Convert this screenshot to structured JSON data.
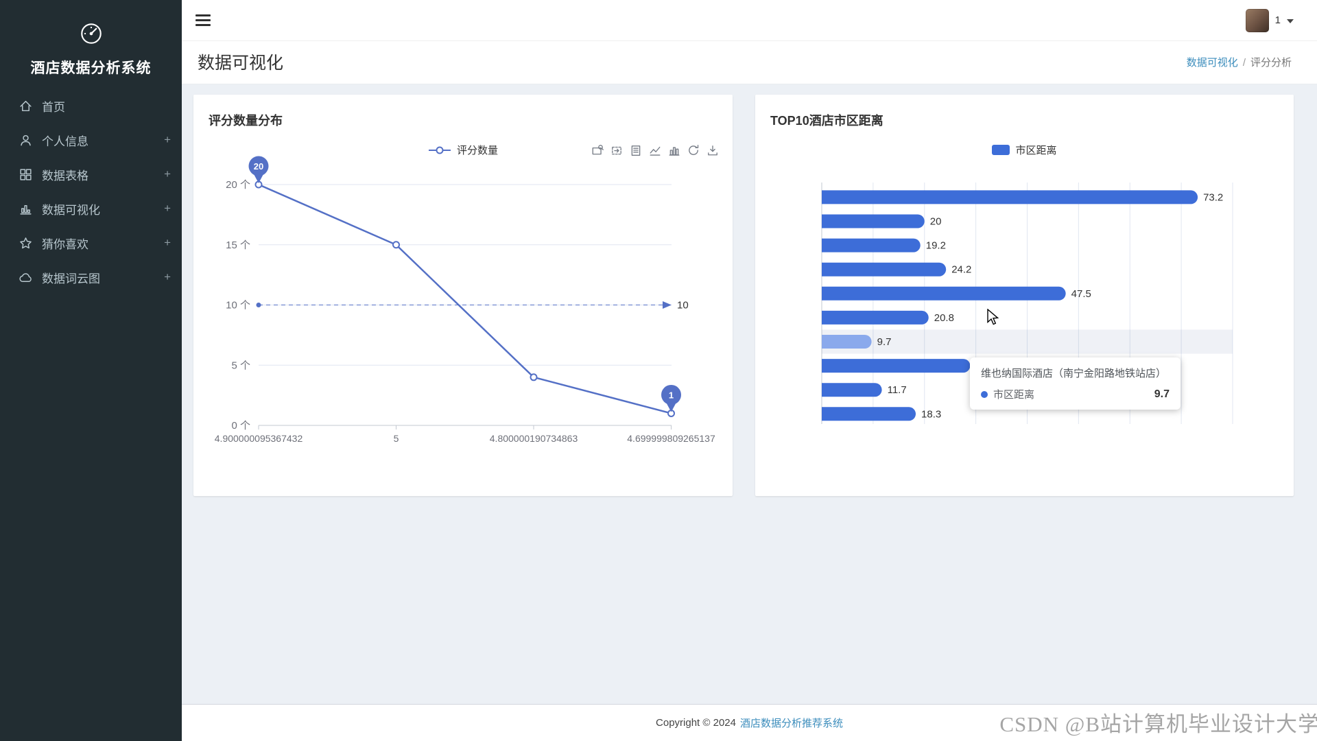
{
  "app": {
    "title": "酒店数据分析系统"
  },
  "sidebar": {
    "items": [
      {
        "label": "首页",
        "icon": "home",
        "expandable": false
      },
      {
        "label": "个人信息",
        "icon": "user",
        "expandable": true
      },
      {
        "label": "数据表格",
        "icon": "table",
        "expandable": true
      },
      {
        "label": "数据可视化",
        "icon": "chart",
        "expandable": true
      },
      {
        "label": "猜你喜欢",
        "icon": "star",
        "expandable": true
      },
      {
        "label": "数据词云图",
        "icon": "cloud",
        "expandable": true
      }
    ],
    "expand_symbol": "+"
  },
  "topbar": {
    "username": "1"
  },
  "page": {
    "title": "数据可视化",
    "breadcrumb": {
      "section": "数据可视化",
      "separator": "/",
      "current": "评分分析"
    }
  },
  "chart_data": [
    {
      "type": "line",
      "title": "评分数量分布",
      "series_name": "评分数量",
      "categories": [
        "4.900000095367432",
        "5",
        "4.800000190734863",
        "4.699999809265137"
      ],
      "values": [
        20,
        15,
        4,
        1
      ],
      "ylim": [
        0,
        20
      ],
      "ytick_labels": [
        "0 个",
        "5 个",
        "10 个",
        "15 个",
        "20 个"
      ],
      "grid": true,
      "legend_position": "top",
      "avg_line": {
        "value": 10,
        "label": "10"
      },
      "max_point": {
        "index": 0,
        "label": "20"
      },
      "min_point": {
        "index": 3,
        "label": "1"
      }
    },
    {
      "type": "bar",
      "title": "TOP10酒店市区距离",
      "series_name": "市区距离",
      "orientation": "horizontal",
      "values": [
        73.2,
        20,
        19.2,
        24.2,
        47.5,
        20.8,
        9.7,
        28.9,
        11.7,
        18.3
      ],
      "value_labels": [
        "73.2",
        "20",
        "19.2",
        "24.2",
        "47.5",
        "20.8",
        "9.7",
        "",
        "11.7",
        "18.3"
      ],
      "xlim": [
        0,
        80
      ],
      "grid": true,
      "legend_position": "top",
      "highlight_index": 6,
      "tooltip": {
        "title": "维也纳国际酒店（南宁金阳路地铁站店）",
        "series": "市区距离",
        "value": "9.7"
      }
    }
  ],
  "toolbox_icons": [
    "data-zoom",
    "data-zoom-reset",
    "data-view",
    "switch-line",
    "switch-bar",
    "restore",
    "save-image"
  ],
  "footer": {
    "copyright": "Copyright © 2024",
    "site_link": "酒店数据分析推荐系统"
  },
  "watermark": "CSDN @B站计算机毕业设计大学",
  "colors": {
    "series_line": "#5470c6",
    "series_bar": "#3d6dd8",
    "series_bar_highlight": "#8aa9ec",
    "sidebar_bg": "#222d32",
    "sidebar_text": "#b8c7ce",
    "content_bg": "#ecf0f5",
    "link": "#3c8dbc"
  }
}
